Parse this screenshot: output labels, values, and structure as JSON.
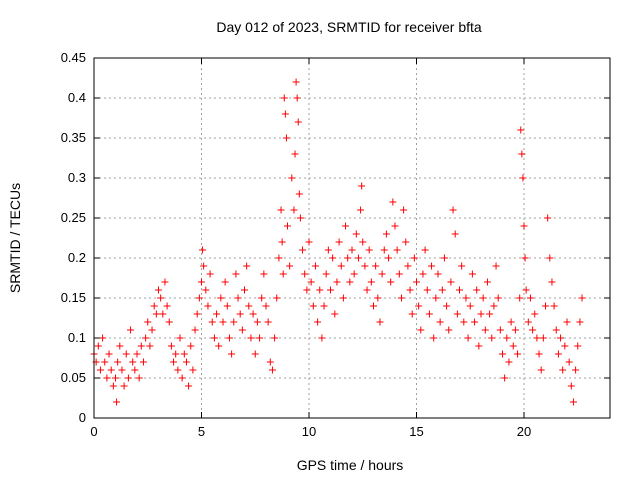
{
  "chart_data": {
    "type": "scatter",
    "title": "Day 012 of 2023, SRMTID for receiver bfta",
    "xlabel": "GPS time / hours",
    "ylabel": "SRMTID / TECUs",
    "xlim": [
      0,
      24
    ],
    "ylim": [
      0,
      0.45
    ],
    "xticks": [
      0,
      5,
      10,
      15,
      20
    ],
    "yticks": [
      0,
      0.05,
      0.1,
      0.15,
      0.2,
      0.25,
      0.3,
      0.35,
      0.4,
      0.45
    ],
    "xtick_labels": [
      "0",
      "5",
      "10",
      "15",
      "20"
    ],
    "ytick_labels": [
      "0",
      "0.05",
      "0.1",
      "0.15",
      "0.2",
      "0.25",
      "0.3",
      "0.35",
      "0.4",
      "0.45"
    ],
    "grid": true,
    "marker": "plus",
    "color": "#ff0000",
    "series": [
      {
        "points": [
          [
            0.0,
            0.08
          ],
          [
            0.1,
            0.07
          ],
          [
            0.2,
            0.09
          ],
          [
            0.3,
            0.06
          ],
          [
            0.4,
            0.1
          ],
          [
            0.5,
            0.07
          ],
          [
            0.6,
            0.05
          ],
          [
            0.7,
            0.08
          ],
          [
            0.8,
            0.06
          ],
          [
            0.9,
            0.04
          ],
          [
            1.0,
            0.05
          ],
          [
            1.05,
            0.02
          ],
          [
            1.1,
            0.07
          ],
          [
            1.2,
            0.09
          ],
          [
            1.3,
            0.06
          ],
          [
            1.4,
            0.04
          ],
          [
            1.5,
            0.08
          ],
          [
            1.6,
            0.05
          ],
          [
            1.7,
            0.11
          ],
          [
            1.8,
            0.07
          ],
          [
            1.9,
            0.06
          ],
          [
            2.0,
            0.08
          ],
          [
            2.1,
            0.05
          ],
          [
            2.2,
            0.09
          ],
          [
            2.3,
            0.07
          ],
          [
            2.4,
            0.1
          ],
          [
            2.5,
            0.12
          ],
          [
            2.6,
            0.09
          ],
          [
            2.7,
            0.11
          ],
          [
            2.8,
            0.14
          ],
          [
            2.9,
            0.13
          ],
          [
            3.0,
            0.16
          ],
          [
            3.1,
            0.15
          ],
          [
            3.2,
            0.13
          ],
          [
            3.3,
            0.17
          ],
          [
            3.4,
            0.14
          ],
          [
            3.5,
            0.12
          ],
          [
            3.6,
            0.09
          ],
          [
            3.7,
            0.07
          ],
          [
            3.8,
            0.08
          ],
          [
            3.9,
            0.06
          ],
          [
            4.0,
            0.1
          ],
          [
            4.1,
            0.05
          ],
          [
            4.2,
            0.08
          ],
          [
            4.3,
            0.07
          ],
          [
            4.4,
            0.04
          ],
          [
            4.5,
            0.09
          ],
          [
            4.6,
            0.06
          ],
          [
            4.7,
            0.11
          ],
          [
            4.8,
            0.13
          ],
          [
            4.9,
            0.15
          ],
          [
            5.0,
            0.17
          ],
          [
            5.05,
            0.21
          ],
          [
            5.1,
            0.19
          ],
          [
            5.2,
            0.16
          ],
          [
            5.3,
            0.14
          ],
          [
            5.4,
            0.18
          ],
          [
            5.5,
            0.12
          ],
          [
            5.6,
            0.1
          ],
          [
            5.7,
            0.13
          ],
          [
            5.8,
            0.09
          ],
          [
            5.9,
            0.15
          ],
          [
            6.0,
            0.12
          ],
          [
            6.1,
            0.17
          ],
          [
            6.2,
            0.14
          ],
          [
            6.3,
            0.1
          ],
          [
            6.4,
            0.08
          ],
          [
            6.5,
            0.12
          ],
          [
            6.6,
            0.18
          ],
          [
            6.7,
            0.15
          ],
          [
            6.8,
            0.13
          ],
          [
            6.9,
            0.11
          ],
          [
            7.0,
            0.16
          ],
          [
            7.1,
            0.19
          ],
          [
            7.2,
            0.14
          ],
          [
            7.3,
            0.1
          ],
          [
            7.4,
            0.13
          ],
          [
            7.5,
            0.08
          ],
          [
            7.6,
            0.12
          ],
          [
            7.7,
            0.1
          ],
          [
            7.8,
            0.15
          ],
          [
            7.9,
            0.18
          ],
          [
            8.0,
            0.14
          ],
          [
            8.1,
            0.12
          ],
          [
            8.2,
            0.07
          ],
          [
            8.3,
            0.06
          ],
          [
            8.4,
            0.1
          ],
          [
            8.5,
            0.15
          ],
          [
            8.6,
            0.2
          ],
          [
            8.7,
            0.26
          ],
          [
            8.75,
            0.22
          ],
          [
            8.8,
            0.18
          ],
          [
            8.85,
            0.4
          ],
          [
            8.9,
            0.38
          ],
          [
            8.95,
            0.35
          ],
          [
            9.0,
            0.24
          ],
          [
            9.1,
            0.19
          ],
          [
            9.2,
            0.3
          ],
          [
            9.3,
            0.26
          ],
          [
            9.35,
            0.33
          ],
          [
            9.4,
            0.42
          ],
          [
            9.45,
            0.4
          ],
          [
            9.5,
            0.37
          ],
          [
            9.55,
            0.28
          ],
          [
            9.6,
            0.25
          ],
          [
            9.7,
            0.21
          ],
          [
            9.8,
            0.18
          ],
          [
            9.9,
            0.16
          ],
          [
            10.0,
            0.22
          ],
          [
            10.1,
            0.17
          ],
          [
            10.2,
            0.14
          ],
          [
            10.3,
            0.19
          ],
          [
            10.4,
            0.12
          ],
          [
            10.5,
            0.16
          ],
          [
            10.6,
            0.1
          ],
          [
            10.7,
            0.14
          ],
          [
            10.8,
            0.18
          ],
          [
            10.9,
            0.21
          ],
          [
            11.0,
            0.16
          ],
          [
            11.1,
            0.2
          ],
          [
            11.2,
            0.13
          ],
          [
            11.3,
            0.17
          ],
          [
            11.4,
            0.22
          ],
          [
            11.5,
            0.19
          ],
          [
            11.6,
            0.15
          ],
          [
            11.7,
            0.24
          ],
          [
            11.8,
            0.2
          ],
          [
            11.9,
            0.17
          ],
          [
            12.0,
            0.21
          ],
          [
            12.1,
            0.18
          ],
          [
            12.2,
            0.23
          ],
          [
            12.3,
            0.2
          ],
          [
            12.4,
            0.26
          ],
          [
            12.45,
            0.29
          ],
          [
            12.5,
            0.22
          ],
          [
            12.6,
            0.19
          ],
          [
            12.7,
            0.16
          ],
          [
            12.8,
            0.21
          ],
          [
            12.9,
            0.17
          ],
          [
            13.0,
            0.14
          ],
          [
            13.1,
            0.19
          ],
          [
            13.2,
            0.15
          ],
          [
            13.3,
            0.12
          ],
          [
            13.4,
            0.18
          ],
          [
            13.5,
            0.21
          ],
          [
            13.6,
            0.23
          ],
          [
            13.7,
            0.2
          ],
          [
            13.8,
            0.17
          ],
          [
            13.9,
            0.27
          ],
          [
            14.0,
            0.24
          ],
          [
            14.1,
            0.21
          ],
          [
            14.2,
            0.18
          ],
          [
            14.3,
            0.15
          ],
          [
            14.4,
            0.26
          ],
          [
            14.5,
            0.22
          ],
          [
            14.6,
            0.19
          ],
          [
            14.7,
            0.16
          ],
          [
            14.8,
            0.13
          ],
          [
            14.9,
            0.2
          ],
          [
            15.0,
            0.17
          ],
          [
            15.1,
            0.14
          ],
          [
            15.2,
            0.11
          ],
          [
            15.3,
            0.18
          ],
          [
            15.4,
            0.21
          ],
          [
            15.5,
            0.16
          ],
          [
            15.6,
            0.13
          ],
          [
            15.7,
            0.19
          ],
          [
            15.8,
            0.1
          ],
          [
            15.9,
            0.15
          ],
          [
            16.0,
            0.18
          ],
          [
            16.1,
            0.12
          ],
          [
            16.2,
            0.16
          ],
          [
            16.3,
            0.2
          ],
          [
            16.4,
            0.14
          ],
          [
            16.5,
            0.11
          ],
          [
            16.6,
            0.17
          ],
          [
            16.7,
            0.26
          ],
          [
            16.8,
            0.23
          ],
          [
            16.9,
            0.13
          ],
          [
            17.0,
            0.16
          ],
          [
            17.1,
            0.19
          ],
          [
            17.2,
            0.12
          ],
          [
            17.3,
            0.15
          ],
          [
            17.4,
            0.1
          ],
          [
            17.5,
            0.14
          ],
          [
            17.6,
            0.18
          ],
          [
            17.7,
            0.12
          ],
          [
            17.8,
            0.16
          ],
          [
            17.9,
            0.09
          ],
          [
            18.0,
            0.13
          ],
          [
            18.1,
            0.15
          ],
          [
            18.2,
            0.11
          ],
          [
            18.3,
            0.17
          ],
          [
            18.4,
            0.13
          ],
          [
            18.5,
            0.1
          ],
          [
            18.6,
            0.14
          ],
          [
            18.7,
            0.19
          ],
          [
            18.8,
            0.15
          ],
          [
            18.9,
            0.11
          ],
          [
            19.0,
            0.08
          ],
          [
            19.1,
            0.05
          ],
          [
            19.2,
            0.1
          ],
          [
            19.3,
            0.07
          ],
          [
            19.4,
            0.12
          ],
          [
            19.5,
            0.09
          ],
          [
            19.6,
            0.11
          ],
          [
            19.7,
            0.08
          ],
          [
            19.8,
            0.15
          ],
          [
            19.85,
            0.36
          ],
          [
            19.9,
            0.33
          ],
          [
            19.95,
            0.3
          ],
          [
            20.0,
            0.24
          ],
          [
            20.05,
            0.2
          ],
          [
            20.1,
            0.16
          ],
          [
            20.2,
            0.12
          ],
          [
            20.3,
            0.15
          ],
          [
            20.4,
            0.11
          ],
          [
            20.5,
            0.13
          ],
          [
            20.6,
            0.1
          ],
          [
            20.7,
            0.08
          ],
          [
            20.8,
            0.06
          ],
          [
            20.9,
            0.1
          ],
          [
            21.0,
            0.14
          ],
          [
            21.1,
            0.25
          ],
          [
            21.2,
            0.2
          ],
          [
            21.3,
            0.17
          ],
          [
            21.4,
            0.14
          ],
          [
            21.5,
            0.11
          ],
          [
            21.6,
            0.08
          ],
          [
            21.7,
            0.1
          ],
          [
            21.8,
            0.06
          ],
          [
            21.9,
            0.09
          ],
          [
            22.0,
            0.12
          ],
          [
            22.1,
            0.07
          ],
          [
            22.2,
            0.04
          ],
          [
            22.3,
            0.02
          ],
          [
            22.4,
            0.06
          ],
          [
            22.5,
            0.09
          ],
          [
            22.6,
            0.12
          ],
          [
            22.7,
            0.15
          ]
        ]
      }
    ]
  }
}
